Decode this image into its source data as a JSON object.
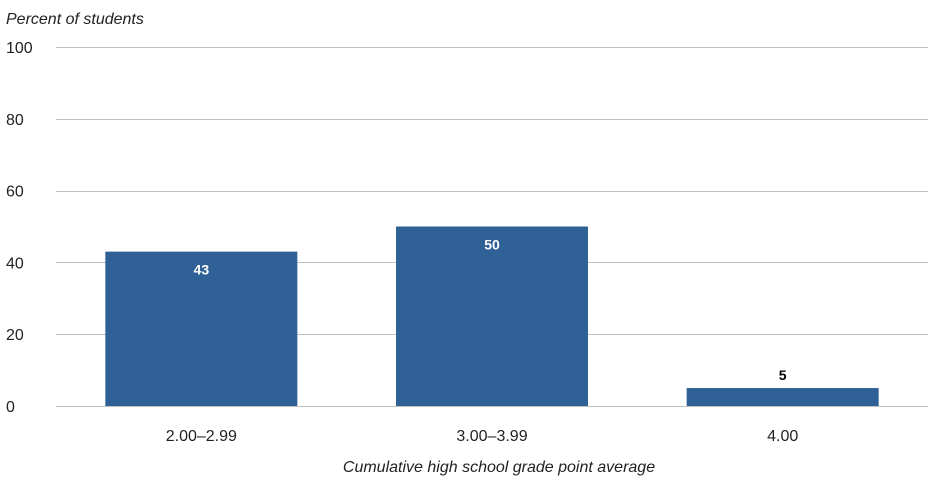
{
  "chart_data": {
    "type": "bar",
    "ylabel": "Percent of students",
    "xlabel": "Cumulative high school grade point average",
    "categories": [
      "2.00–2.99",
      "3.00–3.99",
      "4.00"
    ],
    "values": [
      43,
      50,
      5
    ],
    "data_labels": [
      "43",
      "50",
      "5"
    ],
    "ylim": [
      0,
      100
    ],
    "yticks": [
      0,
      20,
      40,
      60,
      80,
      100
    ],
    "grid": true,
    "legend": "none",
    "colors": {
      "bar": "#2F6096",
      "grid": "#BFBFBF",
      "label_inside": "#FFFFFF",
      "label_outside": "#000000"
    }
  }
}
